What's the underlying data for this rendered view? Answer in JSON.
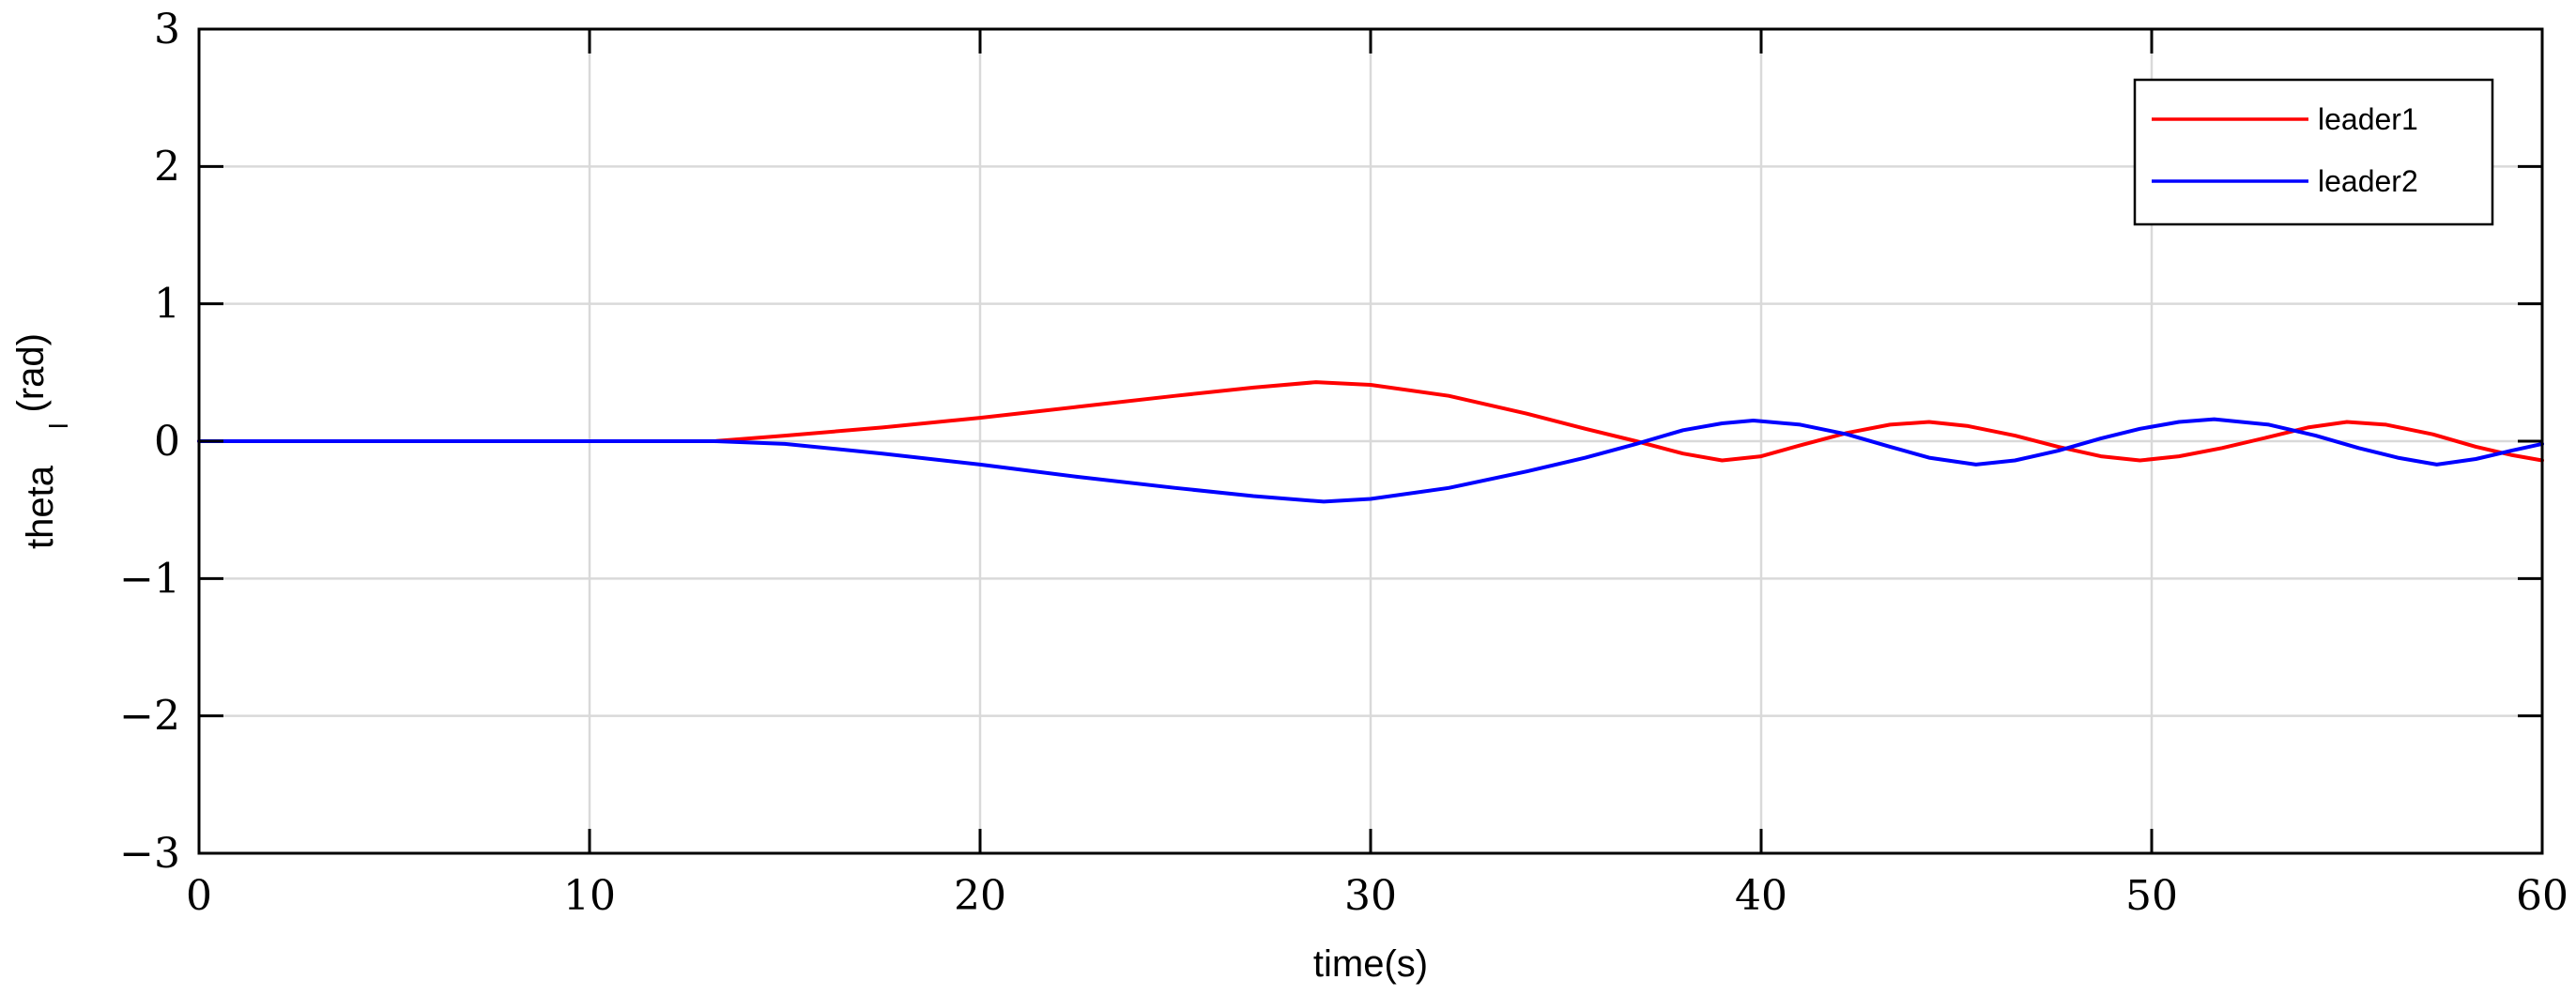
{
  "chart_data": {
    "type": "line",
    "xlabel": "time(s)",
    "ylabel": "theta_l(rad)",
    "xlim": [
      0,
      60
    ],
    "ylim": [
      -3,
      3
    ],
    "xticks": [
      0,
      10,
      20,
      30,
      40,
      50,
      60
    ],
    "yticks": [
      -3,
      -2,
      -1,
      0,
      1,
      2,
      3
    ],
    "xtick_labels": [
      "0",
      "10",
      "20",
      "30",
      "40",
      "50",
      "60"
    ],
    "ytick_labels": [
      "−3",
      "−2",
      "−1",
      "0",
      "1",
      "2",
      "3"
    ],
    "grid": true,
    "legend_position": "top-right",
    "ylabel_parts": {
      "base": "theta",
      "sub": "l",
      "unit": "(rad)"
    },
    "series": [
      {
        "name": "leader1",
        "color": "#ff0000",
        "x": [
          0,
          5,
          10,
          13.2,
          15,
          17.5,
          20,
          22.5,
          25,
          27,
          28.6,
          30,
          32,
          34,
          35.5,
          36.8,
          38,
          39,
          40,
          41,
          42.2,
          43.3,
          44.3,
          45.3,
          46.5,
          47.6,
          48.7,
          49.7,
          50.7,
          51.8,
          53,
          54,
          55,
          56,
          57.2,
          58.3,
          59.2,
          60
        ],
        "y": [
          0,
          0,
          0,
          0,
          0.04,
          0.1,
          0.17,
          0.25,
          0.33,
          0.39,
          0.43,
          0.41,
          0.33,
          0.2,
          0.09,
          0.0,
          -0.09,
          -0.14,
          -0.11,
          -0.03,
          0.06,
          0.12,
          0.14,
          0.11,
          0.04,
          -0.04,
          -0.11,
          -0.14,
          -0.11,
          -0.05,
          0.03,
          0.1,
          0.14,
          0.12,
          0.05,
          -0.04,
          -0.1,
          -0.14
        ]
      },
      {
        "name": "leader2",
        "color": "#0000ff",
        "x": [
          0,
          5,
          10,
          13.2,
          15,
          17.5,
          20,
          22.5,
          25,
          27,
          28.8,
          30,
          32,
          34,
          35.5,
          36.8,
          38,
          39,
          39.8,
          41,
          42.2,
          43.3,
          44.3,
          45.5,
          46.5,
          47.6,
          48.7,
          49.7,
          50.7,
          51.6,
          53,
          54.2,
          55.3,
          56.3,
          57.3,
          58.3,
          59.2,
          60
        ],
        "y": [
          0,
          0,
          0,
          0,
          -0.02,
          -0.09,
          -0.17,
          -0.26,
          -0.34,
          -0.4,
          -0.44,
          -0.42,
          -0.34,
          -0.22,
          -0.12,
          -0.02,
          0.08,
          0.13,
          0.15,
          0.12,
          0.05,
          -0.04,
          -0.12,
          -0.17,
          -0.14,
          -0.07,
          0.02,
          0.09,
          0.14,
          0.16,
          0.12,
          0.04,
          -0.05,
          -0.12,
          -0.17,
          -0.13,
          -0.07,
          -0.02
        ]
      }
    ]
  }
}
